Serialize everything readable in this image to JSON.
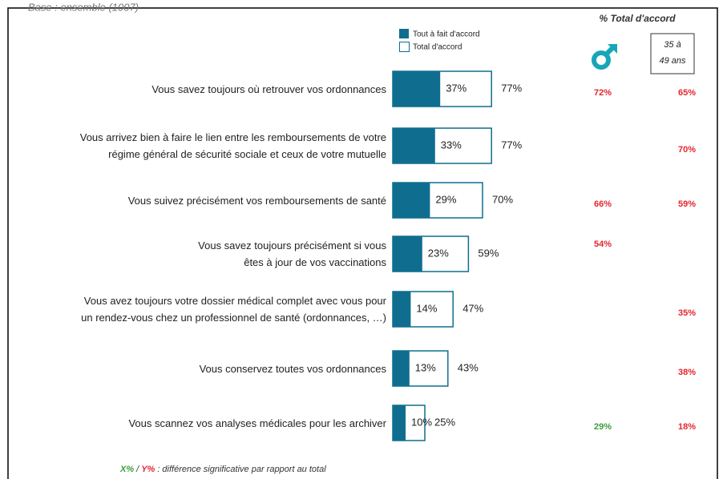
{
  "chart_data": {
    "type": "bar",
    "base_note": "Base : ensemble (1007)",
    "categories": [
      "Vous savez toujours où retrouver vos ordonnances",
      "Vous arrivez bien à faire le lien entre les remboursements de votre\nrégime général de sécurité sociale et ceux de votre mutuelle",
      "Vous suivez précisément vos remboursements de santé",
      "Vous savez toujours précisément si vous\nêtes à jour de vos vaccinations",
      "Vous avez toujours votre dossier médical complet avec vous pour\nun rendez-vous chez un professionnel de santé (ordonnances, …)",
      "Vous conservez toutes vos ordonnances",
      "Vous scannez vos analyses médicales pour les archiver"
    ],
    "series": [
      {
        "name": "Tout à fait d'accord",
        "color": "#0f6e8f",
        "values": [
          37,
          33,
          29,
          23,
          14,
          13,
          10
        ],
        "value_labels": [
          "37%",
          "33%",
          "29%",
          "23%",
          "14%",
          "13%",
          "10%"
        ]
      },
      {
        "name": "Total d'accord",
        "color": "#0f6e8f",
        "values": [
          77,
          77,
          70,
          59,
          47,
          43,
          25
        ],
        "value_labels": [
          "77%",
          "77%",
          "70%",
          "59%",
          "47%",
          "43%",
          "25%"
        ]
      }
    ],
    "columns_title": "% Total d'accord",
    "columns": [
      {
        "name": "Homme",
        "values": [
          72,
          null,
          66,
          54,
          null,
          null,
          29
        ],
        "value_labels": [
          "72%",
          null,
          "66%",
          "54%",
          null,
          null,
          "29%"
        ],
        "colors": [
          "#e3262d",
          null,
          "#e3262d",
          "#e3262d",
          null,
          null,
          "#3a9e3a"
        ]
      },
      {
        "name": "35 à\n49 ans",
        "values": [
          65,
          70,
          59,
          null,
          35,
          38,
          18
        ],
        "value_labels": [
          "65%",
          "70%",
          "59%",
          null,
          "35%",
          "38%",
          "18%"
        ],
        "colors": [
          "#e3262d",
          "#e3262d",
          "#e3262d",
          null,
          "#e3262d",
          "#e3262d",
          "#e3262d"
        ]
      }
    ],
    "footnote": {
      "green": "X%",
      "sep": "/",
      "red": "Y%",
      "text": ": différence significative par rapport au total"
    }
  }
}
